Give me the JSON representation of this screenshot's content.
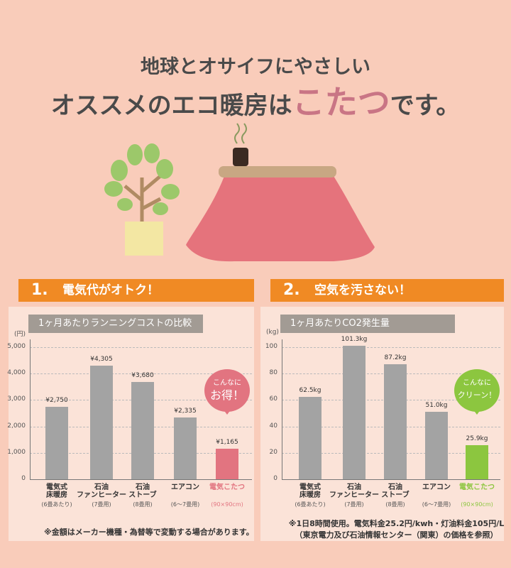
{
  "header": {
    "line1": "地球とオサイフにやさしい",
    "line2_before": "オススメのエコ暖房は",
    "line2_highlight": "こたつ",
    "line2_after": "です。"
  },
  "chart_data": [
    {
      "type": "bar",
      "number": "1.",
      "heading": "電気代がオトク！",
      "title": "1ヶ月あたりランニングコストの比較",
      "unit": "(円)",
      "categories": [
        "電気式\n床暖房",
        "石油\nファンヒーター",
        "石油\nストーブ",
        "エアコン",
        "電気こたつ"
      ],
      "category_notes": [
        "(6畳あたり)",
        "(7畳用)",
        "(8畳用)",
        "(6～7畳用)",
        "(90×90cm)"
      ],
      "values": [
        2750,
        4305,
        3680,
        2335,
        1165
      ],
      "value_labels": [
        "¥2,750",
        "¥4,305",
        "¥3,680",
        "¥2,335",
        "¥1,165"
      ],
      "colors": [
        "#a3a3a3",
        "#a3a3a3",
        "#a3a3a3",
        "#a3a3a3",
        "#e27480"
      ],
      "ylim": [
        0,
        5300
      ],
      "yticks": [
        0,
        {
          "value": 1000,
          "label": "1,000"
        },
        {
          "value": 2000,
          "label": "2,000"
        },
        {
          "value": 3000,
          "label": "3,000"
        },
        {
          "value": 4000,
          "label": "4,000"
        },
        {
          "value": 5000,
          "label": "5,000"
        }
      ],
      "grid": true,
      "callout": [
        "こんなに",
        "お得！"
      ],
      "callout_color": "#e27480",
      "note": "※金額はメーカー機種・為替等で変動する場合があります。"
    },
    {
      "type": "bar",
      "number": "2.",
      "heading": "空気を汚さない！",
      "title": "1ヶ月あたりCO2発生量",
      "unit": "(kg)",
      "categories": [
        "電気式\n床暖房",
        "石油\nファンヒーター",
        "石油\nストーブ",
        "エアコン",
        "電気こたつ"
      ],
      "category_notes": [
        "(6畳あたり)",
        "(7畳用)",
        "(8畳用)",
        "(6～7畳用)",
        "(90×90cm)"
      ],
      "values": [
        62.5,
        101.3,
        87.2,
        51.0,
        25.9
      ],
      "value_labels": [
        "62.5kg",
        "101.3kg",
        "87.2kg",
        "51.0kg",
        "25.9kg"
      ],
      "colors": [
        "#a3a3a3",
        "#a3a3a3",
        "#a3a3a3",
        "#a3a3a3",
        "#8cc63f"
      ],
      "ylim": [
        0,
        106
      ],
      "yticks": [
        0,
        20,
        40,
        60,
        80,
        100
      ],
      "grid": true,
      "callout": [
        "こんなに",
        "クリーン！"
      ],
      "callout_color": "#8cc63f",
      "note": "※1日8時間使用。電気料金25.2円/kwh・灯油料金105円/L\n（東京電力及び石油情報センター（関東）の価格を参照）"
    }
  ]
}
